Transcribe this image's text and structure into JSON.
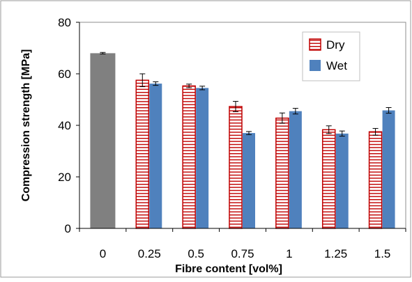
{
  "chart_data": {
    "type": "bar",
    "title": "",
    "xlabel": "Fibre content [vol%]",
    "ylabel": "Compression strength  [MPa]",
    "ylim": [
      0,
      80
    ],
    "yticks": [
      0,
      20,
      40,
      60,
      80
    ],
    "categories": [
      "0",
      "0.25",
      "0.5",
      "0.75",
      "1",
      "1.25",
      "1.5"
    ],
    "grid": false,
    "legend_position": "top-right",
    "reference": {
      "category": "0",
      "value": 68,
      "error": 0.3,
      "color": "#808080"
    },
    "series": [
      {
        "name": "Dry",
        "color": "#C00000",
        "fill": "hatched-horizontal",
        "values": [
          null,
          57.5,
          55.3,
          47.3,
          42.8,
          38.3,
          37.5
        ],
        "errors": [
          null,
          2.5,
          0.7,
          2.0,
          2.0,
          1.5,
          1.3
        ]
      },
      {
        "name": "Wet",
        "color": "#4F81BD",
        "fill": "solid",
        "values": [
          null,
          56.2,
          54.5,
          37.0,
          45.5,
          36.8,
          45.8
        ],
        "errors": [
          null,
          0.7,
          0.7,
          0.6,
          1.1,
          1.0,
          1.1
        ]
      }
    ]
  }
}
